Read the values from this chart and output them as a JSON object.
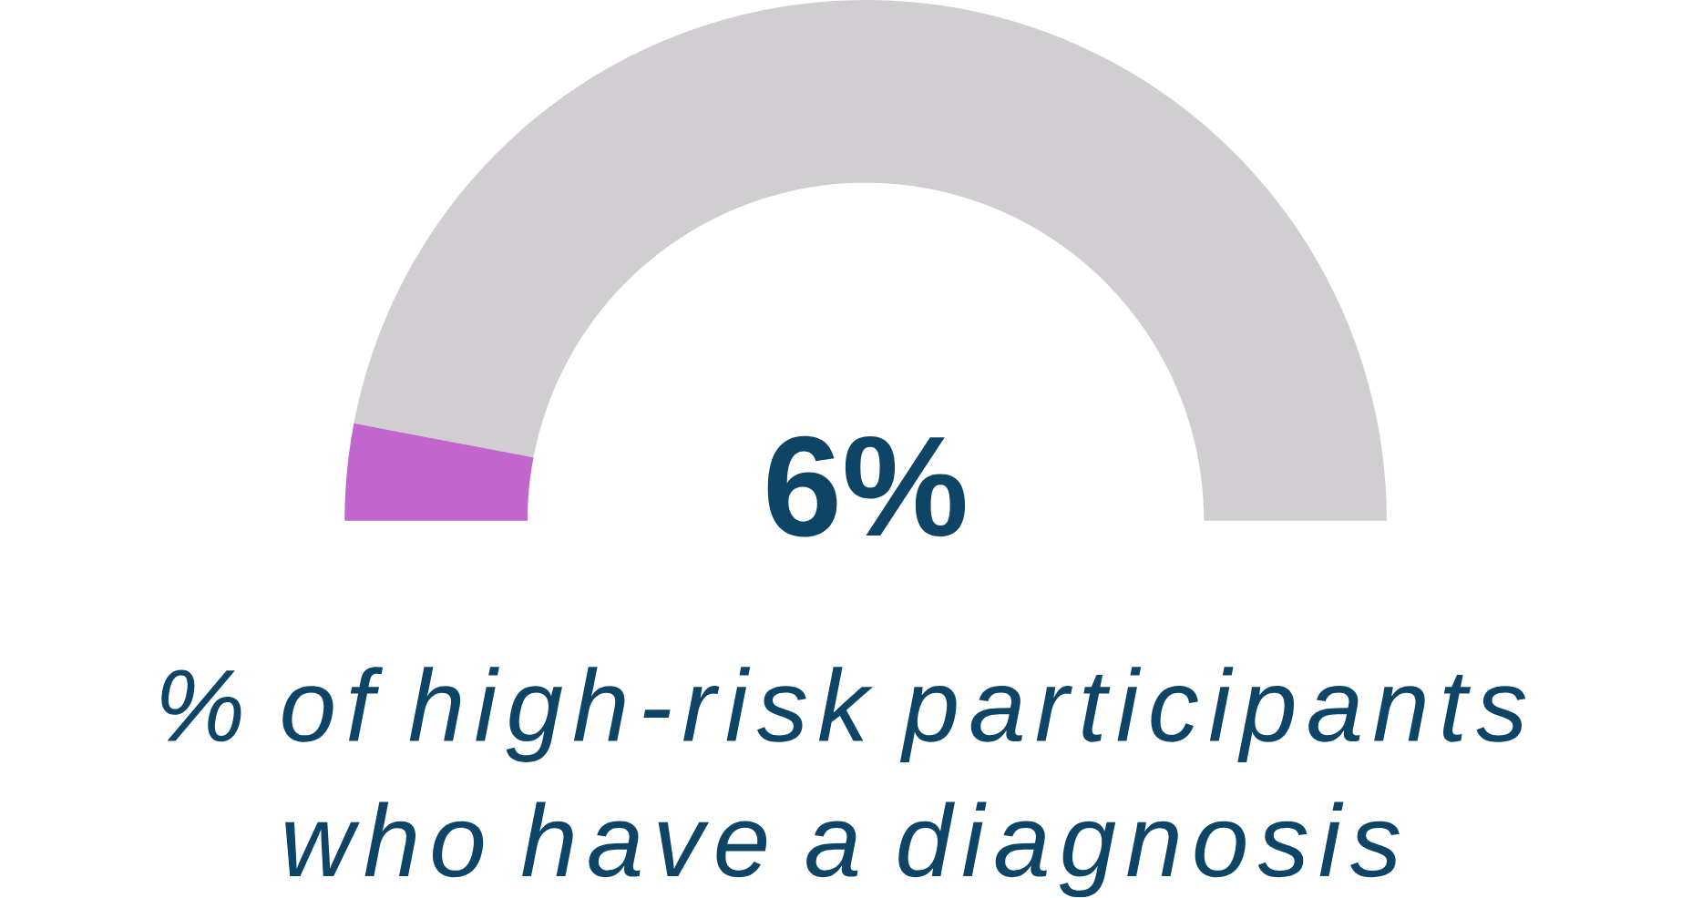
{
  "chart_data": {
    "type": "donut",
    "title": "% of high-risk participants who have a diagnosis",
    "categories": [
      null,
      null
    ],
    "values": [
      6,
      94
    ],
    "colors": [
      "#c066cc",
      "#d0ced1"
    ],
    "annotations": [
      "6%"
    ]
  }
}
